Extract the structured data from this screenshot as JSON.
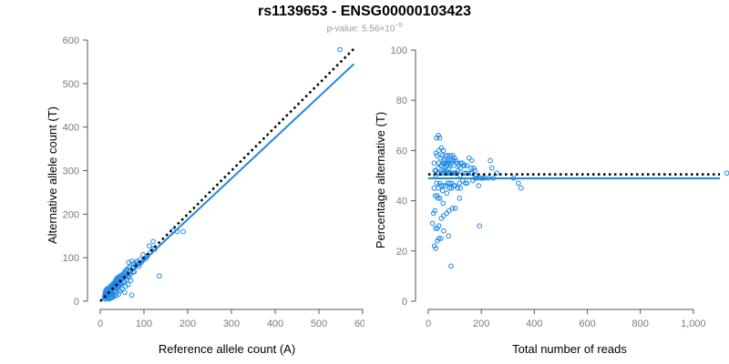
{
  "header": {
    "title": "rs1139653 - ENSG00000103423",
    "subtitle_prefix": "p-value: 5.56×10",
    "subtitle_exponent": "−5"
  },
  "colors": {
    "points": "#1e88e5",
    "fit_line": "#1e88e5",
    "reference_line": "#000000",
    "axis": "#555555",
    "tick_labels": "#7a7a7a"
  },
  "chart_data": [
    {
      "type": "scatter",
      "xlabel": "Reference allele count (A)",
      "ylabel": "Alternative allele count (T)",
      "xlim": [
        0,
        600
      ],
      "ylim": [
        0,
        600
      ],
      "x_ticks": [
        0,
        100,
        200,
        300,
        400,
        500,
        600
      ],
      "y_ticks": [
        0,
        100,
        200,
        300,
        400,
        500,
        600
      ],
      "x_tick_labels": [
        "0",
        "100",
        "200",
        "300",
        "400",
        "500",
        "600"
      ],
      "y_tick_labels": [
        "0",
        "100",
        "200",
        "300",
        "400",
        "500",
        "600"
      ],
      "grid": false,
      "points": [
        [
          548,
          578
        ],
        [
          190,
          160
        ],
        [
          176,
          160
        ],
        [
          167,
          162
        ],
        [
          121,
          137
        ],
        [
          112,
          127
        ],
        [
          121,
          121
        ],
        [
          135,
          58
        ],
        [
          98,
          107
        ],
        [
          105,
          99
        ],
        [
          92,
          96
        ],
        [
          85,
          88
        ],
        [
          80,
          82
        ],
        [
          72,
          92
        ],
        [
          65,
          89
        ],
        [
          62,
          74
        ],
        [
          75,
          66
        ],
        [
          57,
          64
        ],
        [
          53,
          56
        ],
        [
          50,
          52
        ],
        [
          46,
          48
        ],
        [
          42,
          44
        ],
        [
          38,
          40
        ],
        [
          35,
          36
        ],
        [
          31,
          32
        ],
        [
          27,
          28
        ],
        [
          24,
          25
        ],
        [
          20,
          21
        ],
        [
          17,
          18
        ],
        [
          14,
          15
        ],
        [
          12,
          13
        ],
        [
          22,
          15
        ],
        [
          26,
          18
        ],
        [
          30,
          24
        ],
        [
          34,
          22
        ],
        [
          40,
          30
        ],
        [
          44,
          36
        ],
        [
          48,
          40
        ],
        [
          52,
          44
        ],
        [
          60,
          50
        ],
        [
          66,
          55
        ],
        [
          70,
          48
        ],
        [
          64,
          38
        ],
        [
          58,
          34
        ],
        [
          50,
          28
        ],
        [
          45,
          24
        ],
        [
          38,
          20
        ],
        [
          33,
          16
        ],
        [
          28,
          12
        ],
        [
          24,
          10
        ],
        [
          20,
          8
        ],
        [
          16,
          9
        ],
        [
          13,
          7
        ],
        [
          11,
          5
        ],
        [
          18,
          22
        ],
        [
          22,
          30
        ],
        [
          27,
          35
        ],
        [
          32,
          40
        ],
        [
          36,
          46
        ],
        [
          41,
          52
        ],
        [
          46,
          58
        ],
        [
          52,
          62
        ],
        [
          58,
          70
        ],
        [
          30,
          26
        ],
        [
          26,
          22
        ],
        [
          21,
          17
        ],
        [
          19,
          14
        ],
        [
          15,
          11
        ],
        [
          35,
          30
        ],
        [
          39,
          34
        ],
        [
          43,
          38
        ],
        [
          47,
          42
        ],
        [
          55,
          46
        ],
        [
          62,
          56
        ],
        [
          68,
          62
        ],
        [
          78,
          68
        ],
        [
          88,
          80
        ],
        [
          95,
          90
        ],
        [
          25,
          30
        ],
        [
          29,
          33
        ],
        [
          33,
          38
        ],
        [
          37,
          41
        ],
        [
          23,
          20
        ],
        [
          17,
          15
        ],
        [
          14,
          19
        ],
        [
          12,
          17
        ],
        [
          16,
          24
        ],
        [
          20,
          26
        ],
        [
          24,
          28
        ],
        [
          28,
          30
        ],
        [
          32,
          34
        ],
        [
          36,
          38
        ],
        [
          40,
          42
        ],
        [
          44,
          46
        ],
        [
          48,
          50
        ],
        [
          54,
          58
        ],
        [
          60,
          60
        ],
        [
          66,
          68
        ],
        [
          70,
          72
        ],
        [
          74,
          76
        ],
        [
          82,
          84
        ],
        [
          90,
          86
        ],
        [
          100,
          96
        ],
        [
          108,
          104
        ],
        [
          115,
          112
        ],
        [
          125,
          120
        ],
        [
          72,
          14
        ],
        [
          56,
          20
        ],
        [
          42,
          16
        ],
        [
          36,
          12
        ],
        [
          30,
          10
        ],
        [
          26,
          8
        ],
        [
          22,
          6
        ],
        [
          18,
          5
        ],
        [
          40,
          48
        ],
        [
          44,
          52
        ],
        [
          38,
          44
        ],
        [
          34,
          42
        ],
        [
          30,
          36
        ],
        [
          26,
          32
        ],
        [
          22,
          26
        ],
        [
          18,
          20
        ],
        [
          14,
          14
        ],
        [
          12,
          10
        ],
        [
          10,
          12
        ],
        [
          11,
          20
        ],
        [
          13,
          25
        ],
        [
          15,
          28
        ],
        [
          19,
          30
        ],
        [
          23,
          34
        ],
        [
          27,
          38
        ],
        [
          31,
          42
        ],
        [
          35,
          48
        ],
        [
          39,
          54
        ],
        [
          43,
          56
        ],
        [
          49,
          60
        ],
        [
          55,
          66
        ],
        [
          61,
          72
        ],
        [
          67,
          78
        ],
        [
          76,
          86
        ],
        [
          84,
          92
        ]
      ],
      "fit_line": [
        [
          0,
          0
        ],
        [
          580,
          545
        ]
      ],
      "reference_line": [
        [
          0,
          0
        ],
        [
          580,
          580
        ]
      ]
    },
    {
      "type": "scatter",
      "xlabel": "Total number of reads",
      "ylabel": "Percentage alternative (T)",
      "xlim": [
        0,
        1100
      ],
      "ylim": [
        0,
        100
      ],
      "x_ticks": [
        0,
        200,
        400,
        600,
        800,
        1000
      ],
      "y_ticks": [
        0,
        20,
        40,
        60,
        80,
        100
      ],
      "x_tick_labels": [
        "0",
        "200",
        "400",
        "600",
        "800",
        "1,000"
      ],
      "y_tick_labels": [
        "0",
        "20",
        "40",
        "60",
        "80",
        "100"
      ],
      "grid": false,
      "points": [
        [
          1126,
          51
        ],
        [
          350,
          45
        ],
        [
          340,
          47
        ],
        [
          322,
          49
        ],
        [
          258,
          51
        ],
        [
          240,
          53
        ],
        [
          234,
          56
        ],
        [
          193,
          30
        ],
        [
          204,
          49
        ],
        [
          190,
          46
        ],
        [
          180,
          50
        ],
        [
          172,
          53
        ],
        [
          162,
          51
        ],
        [
          164,
          56
        ],
        [
          154,
          57
        ],
        [
          136,
          54
        ],
        [
          140,
          47
        ],
        [
          121,
          53
        ],
        [
          108,
          51
        ],
        [
          102,
          51
        ],
        [
          94,
          51
        ],
        [
          86,
          51
        ],
        [
          78,
          51
        ],
        [
          71,
          51
        ],
        [
          63,
          51
        ],
        [
          55,
          51
        ],
        [
          49,
          51
        ],
        [
          41,
          51
        ],
        [
          35,
          51
        ],
        [
          29,
          52
        ],
        [
          25,
          52
        ],
        [
          37,
          41
        ],
        [
          44,
          41
        ],
        [
          54,
          44
        ],
        [
          56,
          39
        ],
        [
          70,
          43
        ],
        [
          80,
          45
        ],
        [
          88,
          45
        ],
        [
          96,
          46
        ],
        [
          110,
          45
        ],
        [
          121,
          45
        ],
        [
          118,
          41
        ],
        [
          102,
          37
        ],
        [
          92,
          37
        ],
        [
          78,
          36
        ],
        [
          69,
          35
        ],
        [
          58,
          34
        ],
        [
          49,
          33
        ],
        [
          40,
          30
        ],
        [
          34,
          29
        ],
        [
          28,
          29
        ],
        [
          25,
          36
        ],
        [
          20,
          35
        ],
        [
          16,
          31
        ],
        [
          40,
          55
        ],
        [
          52,
          58
        ],
        [
          62,
          56
        ],
        [
          72,
          56
        ],
        [
          82,
          56
        ],
        [
          93,
          56
        ],
        [
          104,
          56
        ],
        [
          114,
          54
        ],
        [
          128,
          55
        ],
        [
          56,
          46
        ],
        [
          48,
          46
        ],
        [
          38,
          45
        ],
        [
          33,
          42
        ],
        [
          26,
          42
        ],
        [
          65,
          46
        ],
        [
          73,
          47
        ],
        [
          81,
          47
        ],
        [
          89,
          47
        ],
        [
          101,
          46
        ],
        [
          118,
          47
        ],
        [
          130,
          48
        ],
        [
          146,
          47
        ],
        [
          168,
          48
        ],
        [
          185,
          49
        ],
        [
          55,
          55
        ],
        [
          62,
          53
        ],
        [
          71,
          54
        ],
        [
          78,
          53
        ],
        [
          43,
          47
        ],
        [
          32,
          47
        ],
        [
          33,
          58
        ],
        [
          29,
          59
        ],
        [
          40,
          60
        ],
        [
          46,
          57
        ],
        [
          52,
          54
        ],
        [
          58,
          52
        ],
        [
          66,
          52
        ],
        [
          74,
          51
        ],
        [
          82,
          51
        ],
        [
          90,
          51
        ],
        [
          98,
          51
        ],
        [
          112,
          52
        ],
        [
          120,
          50
        ],
        [
          134,
          51
        ],
        [
          142,
          51
        ],
        [
          150,
          51
        ],
        [
          166,
          51
        ],
        [
          176,
          49
        ],
        [
          196,
          49
        ],
        [
          212,
          49
        ],
        [
          227,
          49
        ],
        [
          245,
          49
        ],
        [
          86,
          14
        ],
        [
          76,
          26
        ],
        [
          58,
          28
        ],
        [
          48,
          25
        ],
        [
          40,
          25
        ],
        [
          34,
          24
        ],
        [
          28,
          21
        ],
        [
          23,
          22
        ],
        [
          88,
          55
        ],
        [
          96,
          54
        ],
        [
          82,
          54
        ],
        [
          76,
          55
        ],
        [
          66,
          55
        ],
        [
          58,
          55
        ],
        [
          48,
          54
        ],
        [
          38,
          53
        ],
        [
          28,
          50
        ],
        [
          22,
          45
        ],
        [
          22,
          55
        ],
        [
          31,
          65
        ],
        [
          38,
          66
        ],
        [
          43,
          65
        ],
        [
          49,
          61
        ],
        [
          57,
          60
        ],
        [
          65,
          58
        ],
        [
          73,
          58
        ],
        [
          83,
          58
        ],
        [
          93,
          58
        ],
        [
          99,
          57
        ],
        [
          109,
          55
        ],
        [
          121,
          55
        ],
        [
          133,
          54
        ],
        [
          145,
          54
        ],
        [
          162,
          53
        ],
        [
          176,
          52
        ]
      ],
      "fit_line": [
        [
          0,
          48.9
        ],
        [
          1100,
          48.9
        ]
      ],
      "reference_line": [
        [
          0,
          50.5
        ],
        [
          1100,
          50.5
        ]
      ]
    }
  ]
}
